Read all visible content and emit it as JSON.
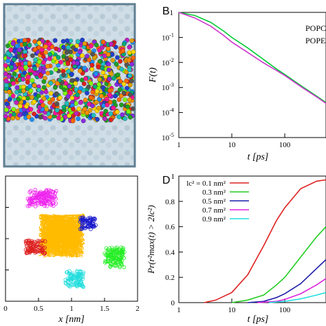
{
  "panels": {
    "B": {
      "letter": "B",
      "chart_data": {
        "type": "line",
        "xlabel": "t [ps]",
        "ylabel": "F(t)",
        "xscale": "log",
        "yscale": "log",
        "xlim": [
          1,
          600
        ],
        "ylim": [
          1e-05,
          1
        ],
        "x_ticks": [
          "1",
          "10",
          "100"
        ],
        "y_ticks": [
          "1",
          "10^-1",
          "10^-2",
          "10^-3",
          "10^-4",
          "10^-5"
        ],
        "legend_placement": "top-right",
        "series": [
          {
            "name": "POPC",
            "color": "#00cc33",
            "points": [
              [
                1,
                1
              ],
              [
                2,
                0.75
              ],
              [
                4,
                0.4
              ],
              [
                7,
                0.18
              ],
              [
                10,
                0.1
              ],
              [
                20,
                0.038
              ],
              [
                40,
                0.013
              ],
              [
                70,
                0.0055
              ],
              [
                100,
                0.0033
              ],
              [
                200,
                0.0012
              ],
              [
                400,
                0.00045
              ],
              [
                600,
                0.00025
              ]
            ]
          },
          {
            "name": "POPE",
            "color": "#cc33cc",
            "points": [
              [
                1,
                1
              ],
              [
                2,
                0.6
              ],
              [
                4,
                0.28
              ],
              [
                7,
                0.12
              ],
              [
                10,
                0.065
              ],
              [
                20,
                0.025
              ],
              [
                40,
                0.0095
              ],
              [
                70,
                0.0048
              ],
              [
                100,
                0.003
              ],
              [
                200,
                0.0011
              ],
              [
                400,
                0.00042
              ],
              [
                600,
                0.00023
              ]
            ]
          }
        ]
      }
    },
    "D": {
      "letter": "D",
      "chart_data": {
        "type": "line",
        "xlabel": "t [ps]",
        "ylabel": "Pr(r²max(t) > 2lc²)",
        "xscale": "log",
        "xlim": [
          1,
          600
        ],
        "ylim": [
          0,
          1
        ],
        "x_ticks": [
          "1",
          "10",
          "100"
        ],
        "y_ticks": [
          "0",
          "0.2",
          "0.4",
          "0.6",
          "0.8",
          "1"
        ],
        "legend_placement": "top-left",
        "series": [
          {
            "name": "lc² = 0.1 nm²",
            "color": "#dd2020",
            "points": [
              [
                3,
                0
              ],
              [
                5,
                0.02
              ],
              [
                10,
                0.08
              ],
              [
                20,
                0.22
              ],
              [
                40,
                0.45
              ],
              [
                70,
                0.65
              ],
              [
                100,
                0.75
              ],
              [
                200,
                0.9
              ],
              [
                400,
                0.96
              ],
              [
                600,
                0.97
              ]
            ]
          },
          {
            "name": "0.3 nm²",
            "color": "#22cc22",
            "points": [
              [
                10,
                0
              ],
              [
                20,
                0.02
              ],
              [
                40,
                0.06
              ],
              [
                70,
                0.14
              ],
              [
                100,
                0.2
              ],
              [
                200,
                0.36
              ],
              [
                400,
                0.52
              ],
              [
                600,
                0.6
              ]
            ]
          },
          {
            "name": "0.5 nm²",
            "color": "#1a1aaa",
            "points": [
              [
                20,
                0
              ],
              [
                40,
                0.01
              ],
              [
                70,
                0.04
              ],
              [
                100,
                0.07
              ],
              [
                200,
                0.15
              ],
              [
                400,
                0.27
              ],
              [
                600,
                0.34
              ]
            ]
          },
          {
            "name": "0.7 nm²",
            "color": "#dd22dd",
            "points": [
              [
                30,
                0
              ],
              [
                70,
                0.01
              ],
              [
                100,
                0.025
              ],
              [
                200,
                0.07
              ],
              [
                400,
                0.14
              ],
              [
                600,
                0.19
              ]
            ]
          },
          {
            "name": "0.9 nm²",
            "color": "#22dddd",
            "points": [
              [
                50,
                0
              ],
              [
                100,
                0.01
              ],
              [
                200,
                0.03
              ],
              [
                400,
                0.06
              ],
              [
                600,
                0.08
              ]
            ]
          }
        ]
      }
    },
    "C": {
      "chart_data": {
        "type": "scatter",
        "xlabel": "x [nm]",
        "xlim": [
          0,
          2
        ],
        "x_ticks": [
          "0",
          "0.5",
          "1",
          "1.5",
          "2"
        ],
        "clusters": [
          {
            "color": "#ee22ee",
            "center": [
              0.55,
              1.65
            ],
            "spread": [
              0.22,
              0.14
            ],
            "n": 70
          },
          {
            "color": "#ffbb00",
            "center": [
              0.85,
              1.05
            ],
            "spread": [
              0.35,
              0.35
            ],
            "n": 600
          },
          {
            "color": "#1a1acc",
            "center": [
              1.25,
              1.25
            ],
            "spread": [
              0.12,
              0.1
            ],
            "n": 45
          },
          {
            "color": "#dd2020",
            "center": [
              0.45,
              0.85
            ],
            "spread": [
              0.15,
              0.12
            ],
            "n": 55
          },
          {
            "color": "#22ee22",
            "center": [
              1.65,
              0.7
            ],
            "spread": [
              0.15,
              0.16
            ],
            "n": 70
          },
          {
            "color": "#22dddd",
            "center": [
              1.05,
              0.35
            ],
            "spread": [
              0.15,
              0.13
            ],
            "n": 55
          }
        ]
      }
    }
  }
}
